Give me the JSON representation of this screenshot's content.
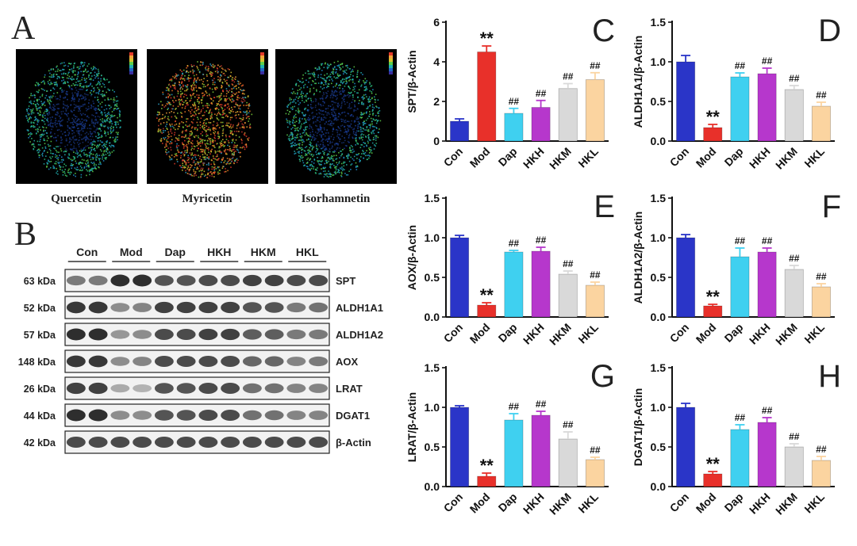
{
  "panel_a": {
    "letter": "A",
    "images": [
      {
        "label": "Quercetin",
        "scheme": "cool"
      },
      {
        "label": "Myricetin",
        "scheme": "warm"
      },
      {
        "label": "Isorhamnetin",
        "scheme": "cool"
      }
    ]
  },
  "panel_b": {
    "letter": "B",
    "groups": [
      "Con",
      "Mod",
      "Dap",
      "HKH",
      "HKM",
      "HKL"
    ],
    "blots": [
      {
        "kda": "63 kDa",
        "protein": "SPT",
        "intensity": [
          0.6,
          0.6,
          1.0,
          1.0,
          0.8,
          0.8,
          0.85,
          0.85,
          0.9,
          0.9,
          0.85,
          0.85
        ]
      },
      {
        "kda": "52 kDa",
        "protein": "ALDH1A1",
        "intensity": [
          0.95,
          0.95,
          0.5,
          0.55,
          0.9,
          0.9,
          0.9,
          0.9,
          0.8,
          0.8,
          0.6,
          0.65
        ]
      },
      {
        "kda": "57 kDa",
        "protein": "ALDH1A2",
        "intensity": [
          1.0,
          1.0,
          0.45,
          0.5,
          0.85,
          0.85,
          0.9,
          0.9,
          0.75,
          0.75,
          0.6,
          0.6
        ]
      },
      {
        "kda": "148 kDa",
        "protein": "AOX",
        "intensity": [
          0.95,
          0.95,
          0.5,
          0.55,
          0.85,
          0.85,
          0.85,
          0.85,
          0.7,
          0.7,
          0.55,
          0.6
        ]
      },
      {
        "kda": "26 kDa",
        "protein": "LRAT",
        "intensity": [
          0.9,
          0.9,
          0.35,
          0.3,
          0.8,
          0.8,
          0.85,
          0.85,
          0.65,
          0.65,
          0.55,
          0.55
        ]
      },
      {
        "kda": "44 kDa",
        "protein": "DGAT1",
        "intensity": [
          1.0,
          1.0,
          0.5,
          0.5,
          0.8,
          0.8,
          0.85,
          0.85,
          0.65,
          0.65,
          0.55,
          0.55
        ]
      },
      {
        "kda": "42 kDa",
        "protein": "β-Actin",
        "intensity": [
          0.85,
          0.85,
          0.85,
          0.85,
          0.85,
          0.85,
          0.85,
          0.85,
          0.85,
          0.85,
          0.85,
          0.85
        ]
      }
    ]
  },
  "colors": {
    "Con": "#2a35c8",
    "Mod": "#e8302a",
    "Dap": "#3fd0f0",
    "HKH": "#b637cc",
    "HKM": "#d9d9d9",
    "HKL": "#fbd4a0"
  },
  "chart_data": [
    {
      "letter": "C",
      "type": "bar",
      "ylabel": "SPT/β-Actin",
      "ylim": [
        0,
        6
      ],
      "yticks": [
        0,
        2,
        4,
        6
      ],
      "categories": [
        "Con",
        "Mod",
        "Dap",
        "HKH",
        "HKM",
        "HKL"
      ],
      "values": [
        1.0,
        4.5,
        1.4,
        1.7,
        2.65,
        3.1
      ],
      "errors": [
        0.12,
        0.3,
        0.25,
        0.35,
        0.25,
        0.35
      ],
      "annotations": [
        "",
        "**",
        "##",
        "##",
        "##",
        "##"
      ]
    },
    {
      "letter": "D",
      "type": "bar",
      "ylabel": "ALDH1A1/β-Actin",
      "ylim": [
        0,
        1.5
      ],
      "yticks": [
        0.0,
        0.5,
        1.0,
        1.5
      ],
      "categories": [
        "Con",
        "Mod",
        "Dap",
        "HKH",
        "HKM",
        "HKL"
      ],
      "values": [
        1.0,
        0.17,
        0.81,
        0.85,
        0.65,
        0.44
      ],
      "errors": [
        0.08,
        0.04,
        0.05,
        0.07,
        0.05,
        0.05
      ],
      "annotations": [
        "",
        "**",
        "##",
        "##",
        "##",
        "##"
      ]
    },
    {
      "letter": "E",
      "type": "bar",
      "ylabel": "AOX/β-Actin",
      "ylim": [
        0,
        1.5
      ],
      "yticks": [
        0.0,
        0.5,
        1.0,
        1.5
      ],
      "categories": [
        "Con",
        "Mod",
        "Dap",
        "HKH",
        "HKM",
        "HKL"
      ],
      "values": [
        1.0,
        0.15,
        0.82,
        0.83,
        0.54,
        0.4
      ],
      "errors": [
        0.03,
        0.03,
        0.02,
        0.05,
        0.04,
        0.04
      ],
      "annotations": [
        "",
        "**",
        "##",
        "##",
        "##",
        "##"
      ]
    },
    {
      "letter": "F",
      "type": "bar",
      "ylabel": "ALDH1A2/β-Actin",
      "ylim": [
        0,
        1.5
      ],
      "yticks": [
        0.0,
        0.5,
        1.0,
        1.5
      ],
      "categories": [
        "Con",
        "Mod",
        "Dap",
        "HKH",
        "HKM",
        "HKL"
      ],
      "values": [
        1.0,
        0.14,
        0.76,
        0.82,
        0.6,
        0.38
      ],
      "errors": [
        0.04,
        0.02,
        0.11,
        0.05,
        0.05,
        0.04
      ],
      "annotations": [
        "",
        "**",
        "##",
        "##",
        "##",
        "##"
      ]
    },
    {
      "letter": "G",
      "type": "bar",
      "ylabel": "LRAT/β-Actin",
      "ylim": [
        0,
        1.5
      ],
      "yticks": [
        0.0,
        0.5,
        1.0,
        1.5
      ],
      "categories": [
        "Con",
        "Mod",
        "Dap",
        "HKH",
        "HKM",
        "HKL"
      ],
      "values": [
        1.0,
        0.13,
        0.84,
        0.9,
        0.6,
        0.34
      ],
      "errors": [
        0.02,
        0.04,
        0.08,
        0.05,
        0.09,
        0.03
      ],
      "annotations": [
        "",
        "**",
        "##",
        "##",
        "##",
        "##"
      ]
    },
    {
      "letter": "H",
      "type": "bar",
      "ylabel": "DGAT1/β-Actin",
      "ylim": [
        0,
        1.5
      ],
      "yticks": [
        0.0,
        0.5,
        1.0,
        1.5
      ],
      "categories": [
        "Con",
        "Mod",
        "Dap",
        "HKH",
        "HKM",
        "HKL"
      ],
      "values": [
        1.0,
        0.16,
        0.72,
        0.81,
        0.5,
        0.33
      ],
      "errors": [
        0.05,
        0.03,
        0.06,
        0.06,
        0.04,
        0.05
      ],
      "annotations": [
        "",
        "**",
        "##",
        "##",
        "##",
        "##"
      ]
    }
  ]
}
